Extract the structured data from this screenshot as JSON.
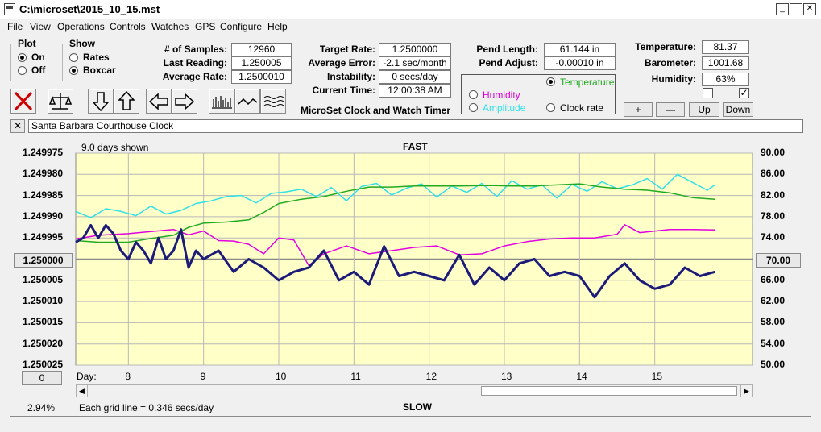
{
  "window": {
    "title": "C:\\microset\\2015_10_15.mst",
    "minimize": "_",
    "maximize": "□",
    "close": "✕"
  },
  "menu": [
    "File",
    "View",
    "Operations",
    "Controls",
    "Watches",
    "GPS",
    "Configure",
    "Help"
  ],
  "plot_group": {
    "title": "Plot",
    "options": [
      "On",
      "Off"
    ],
    "selected": "On"
  },
  "show_group": {
    "title": "Show",
    "options": [
      "Rates",
      "Boxcar"
    ],
    "selected": "Boxcar"
  },
  "stats": {
    "samples_label": "# of Samples:",
    "samples": "12960",
    "last_label": "Last Reading:",
    "last": "1.250005",
    "avg_label": "Average Rate:",
    "avg": "1.2500010"
  },
  "rates": {
    "target_label": "Target Rate:",
    "target": "1.2500000",
    "error_label": "Average Error:",
    "error": "-2.1 sec/month",
    "instability_label": "Instability:",
    "instability": "0 secs/day",
    "time_label": "Current Time:",
    "time": "12:00:38 AM",
    "product": "MicroSet Clock and Watch Timer"
  },
  "pendulum": {
    "length_label": "Pend Length:",
    "length": "61.144 in",
    "adjust_label": "Pend Adjust:",
    "adjust": "-0.00010 in"
  },
  "aux_select": {
    "options": [
      "Temperature",
      "Humidity",
      "Amplitude",
      "Clock rate"
    ],
    "selected": "Temperature"
  },
  "environment": {
    "temp_label": "Temperature:",
    "temp": "81.37",
    "baro_label": "Barometer:",
    "baro": "1001.68",
    "hum_label": "Humidity:",
    "hum": "63%",
    "check_left": "",
    "check_right": "✓"
  },
  "scale_buttons": [
    "+",
    "—",
    "Up",
    "Down"
  ],
  "clock_name": "Santa Barbara Courthouse Clock",
  "colors": {
    "plot_bg": "#ffffc8",
    "rate": "#1c1c78",
    "temperature": "#22aa22",
    "humidity": "#e000e0",
    "amplitude": "#33e0e8",
    "close_x": "#d00000"
  },
  "chart_data": {
    "type": "line",
    "title": "FAST",
    "bottom_label": "SLOW",
    "days_shown": "9.0 days shown",
    "grid_note": "Each grid line = 0.346 secs/day",
    "percent": "2.94%",
    "xlabel": "Day:",
    "x_ticks": [
      "8",
      "9",
      "10",
      "11",
      "12",
      "13",
      "14",
      "15"
    ],
    "x_range": [
      7.3,
      16.3
    ],
    "left_ticks": [
      "1.249975",
      "1.249980",
      "1.249985",
      "1.249990",
      "1.249995",
      "1.250000",
      "1.250005",
      "1.250010",
      "1.250015",
      "1.250020",
      "1.250025"
    ],
    "left_center_button": "1.250000",
    "left_range": [
      1.250025,
      1.249975
    ],
    "right_ticks": [
      "90.00",
      "86.00",
      "82.00",
      "78.00",
      "74.00",
      "70.00",
      "66.00",
      "62.00",
      "58.00",
      "54.00",
      "50.00"
    ],
    "right_center_button": "70.00",
    "right_range": [
      50,
      90
    ],
    "bottom_button": "0",
    "series": [
      {
        "name": "Rate",
        "color": "#1c1c78",
        "axis": "left",
        "x": [
          7.3,
          7.4,
          7.5,
          7.6,
          7.7,
          7.8,
          7.9,
          8.0,
          8.1,
          8.2,
          8.3,
          8.4,
          8.5,
          8.6,
          8.7,
          8.8,
          8.9,
          9.0,
          9.2,
          9.4,
          9.6,
          9.8,
          10.0,
          10.2,
          10.4,
          10.6,
          10.8,
          11.0,
          11.2,
          11.4,
          11.6,
          11.8,
          12.0,
          12.2,
          12.4,
          12.6,
          12.8,
          13.0,
          13.2,
          13.4,
          13.6,
          13.8,
          14.0,
          14.2,
          14.4,
          14.6,
          14.8,
          15.0,
          15.2,
          15.4,
          15.6,
          15.8
        ],
        "y": [
          1.249996,
          1.249995,
          1.249992,
          1.249995,
          1.249992,
          1.249994,
          1.249998,
          1.25,
          1.249996,
          1.249998,
          1.250001,
          1.249995,
          1.25,
          1.249998,
          1.249993,
          1.250002,
          1.249998,
          1.25,
          1.249998,
          1.250003,
          1.25,
          1.250002,
          1.250005,
          1.250003,
          1.250002,
          1.249998,
          1.250005,
          1.250003,
          1.250006,
          1.249997,
          1.250004,
          1.250003,
          1.250004,
          1.250005,
          1.249999,
          1.250006,
          1.250002,
          1.250005,
          1.250001,
          1.25,
          1.250004,
          1.250003,
          1.250004,
          1.250009,
          1.250004,
          1.250001,
          1.250005,
          1.250007,
          1.250006,
          1.250002,
          1.250004,
          1.250003
        ]
      },
      {
        "name": "Temperature",
        "color": "#22aa22",
        "axis": "right",
        "x": [
          7.3,
          7.6,
          8.0,
          8.3,
          8.6,
          8.8,
          9.0,
          9.3,
          9.6,
          9.8,
          10.0,
          10.3,
          10.6,
          10.9,
          11.2,
          11.5,
          11.8,
          12.1,
          12.4,
          12.8,
          13.1,
          13.4,
          13.7,
          14.0,
          14.3,
          14.6,
          14.9,
          15.2,
          15.5,
          15.8
        ],
        "y": [
          73.5,
          73.2,
          73.2,
          73.9,
          74.5,
          76.0,
          76.8,
          77.0,
          77.4,
          78.8,
          80.5,
          81.3,
          81.8,
          82.8,
          83.6,
          83.6,
          83.8,
          83.8,
          83.8,
          83.9,
          83.8,
          83.8,
          84.0,
          84.2,
          83.6,
          83.2,
          83.0,
          82.5,
          81.6,
          81.3
        ]
      },
      {
        "name": "Humidity",
        "color": "#e000e0",
        "axis": "right",
        "x": [
          7.3,
          7.6,
          8.0,
          8.3,
          8.6,
          8.8,
          9.0,
          9.2,
          9.4,
          9.6,
          9.8,
          10.0,
          10.2,
          10.4,
          10.6,
          10.9,
          11.2,
          11.5,
          11.8,
          12.1,
          12.4,
          12.7,
          13.0,
          13.3,
          13.6,
          13.9,
          14.2,
          14.5,
          14.6,
          14.8,
          15.2,
          15.5,
          15.8
        ],
        "y": [
          73.8,
          74.5,
          74.8,
          75.2,
          75.6,
          74.6,
          75.3,
          73.5,
          73.4,
          72.8,
          71.0,
          74.0,
          73.6,
          68.8,
          71.0,
          72.5,
          71.0,
          71.6,
          72.2,
          72.5,
          70.8,
          71.0,
          72.5,
          73.3,
          73.8,
          74.0,
          74.0,
          74.7,
          76.5,
          75.0,
          75.6,
          75.6,
          75.5
        ]
      },
      {
        "name": "Amplitude",
        "color": "#33e0e8",
        "axis": "right",
        "x": [
          7.3,
          7.5,
          7.7,
          7.9,
          8.1,
          8.3,
          8.5,
          8.7,
          8.9,
          9.1,
          9.3,
          9.5,
          9.7,
          9.9,
          10.1,
          10.3,
          10.5,
          10.7,
          10.9,
          11.1,
          11.3,
          11.5,
          11.7,
          11.9,
          12.1,
          12.3,
          12.5,
          12.7,
          12.9,
          13.1,
          13.3,
          13.5,
          13.7,
          13.9,
          14.1,
          14.3,
          14.5,
          14.7,
          14.9,
          15.1,
          15.3,
          15.5,
          15.7,
          15.8
        ],
        "y": [
          79.0,
          77.8,
          79.5,
          79.0,
          78.2,
          80.0,
          78.5,
          79.2,
          80.5,
          81.0,
          81.8,
          82.0,
          80.6,
          82.4,
          82.7,
          83.2,
          81.8,
          83.5,
          81.0,
          83.7,
          84.3,
          82.1,
          83.4,
          84.2,
          81.7,
          83.8,
          82.6,
          84.3,
          81.8,
          84.8,
          83.2,
          84.0,
          81.5,
          84.1,
          82.8,
          84.6,
          83.3,
          84.0,
          85.2,
          83.2,
          86.0,
          84.5,
          83.0,
          84.0
        ]
      }
    ]
  }
}
